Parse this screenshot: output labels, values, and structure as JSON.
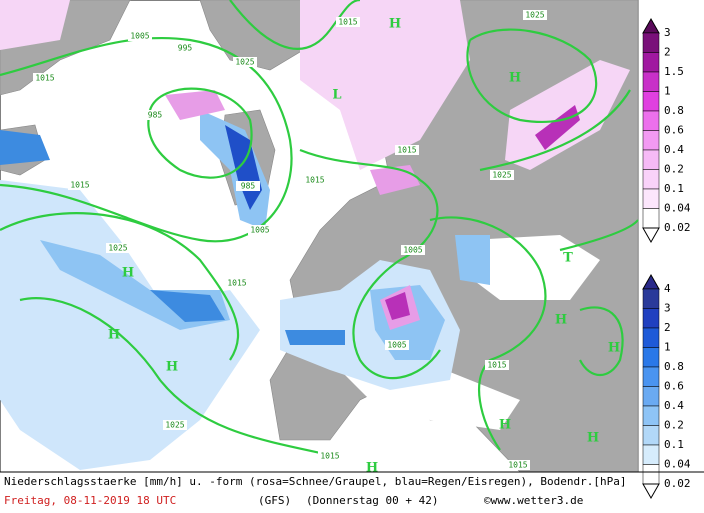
{
  "map": {
    "isobar_labels": [
      "1005",
      "995",
      "1015",
      "1025",
      "1015",
      "1025",
      "985",
      "1015",
      "1015",
      "1025",
      "1015",
      "985",
      "1005",
      "1025",
      "1005",
      "1015",
      "1005",
      "1015",
      "1025",
      "1015",
      "1015"
    ],
    "pressure_centers": [
      "H",
      "H",
      "H",
      "H",
      "H",
      "T",
      "H",
      "H",
      "H",
      "H",
      "H",
      "L"
    ]
  },
  "legend_snow": {
    "labels": [
      "3",
      "2",
      "1.5",
      "1",
      "0.8",
      "0.6",
      "0.4",
      "0.2",
      "0.1",
      "0.04",
      "0.02"
    ]
  },
  "legend_rain": {
    "labels": [
      "4",
      "3",
      "2",
      "1",
      "0.8",
      "0.6",
      "0.4",
      "0.2",
      "0.1",
      "0.04",
      "0.02"
    ]
  },
  "footer": {
    "description": "Niederschlagsstaerke [mm/h] u. -form (rosa=Schnee/Graupel, blau=Regen/Eisregen), Bodendr.[hPa]",
    "date": "Freitag, 08-11-2019  18 UTC",
    "model": "(GFS)",
    "run": "(Donnerstag 00 + 42)",
    "site": "©www.wetter3.de"
  }
}
